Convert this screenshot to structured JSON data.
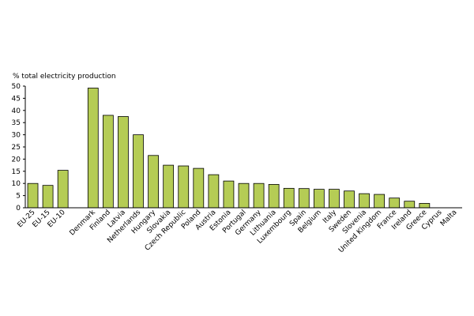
{
  "chart_data": {
    "type": "bar",
    "title": "",
    "xlabel": "",
    "ylabel": "% total electricity production",
    "ylim": [
      0,
      50
    ],
    "yticks": [
      0,
      5,
      10,
      15,
      20,
      25,
      30,
      35,
      40,
      45,
      50
    ],
    "grid": false,
    "legend": "none",
    "bar_color": "#b5cc55",
    "bar_edge_color": "#000000",
    "categories": [
      "EU-25",
      "EU-15",
      "EU-10",
      "",
      "Denmark",
      "Finland",
      "Latvia",
      "Netherlands",
      "Hungary",
      "Slovakia",
      "Czech Republic",
      "Poland",
      "Austria",
      "Estonia",
      "Portugal",
      "Germany",
      "Lithuania",
      "Luxembourg",
      "Spain",
      "Belgium",
      "Italy",
      "Sweden",
      "Slovenia",
      "United Kingdom",
      "France",
      "Ireland",
      "Greece",
      "Cyprus",
      "Malta"
    ],
    "values": [
      10,
      9.2,
      15.4,
      null,
      49.2,
      38,
      37.5,
      30,
      21.5,
      17.5,
      17.2,
      16.2,
      13.6,
      11,
      10,
      10,
      9.6,
      8,
      7.9,
      7.6,
      7.6,
      6.9,
      5.8,
      5.5,
      4,
      2.7,
      1.8,
      0,
      0
    ]
  }
}
